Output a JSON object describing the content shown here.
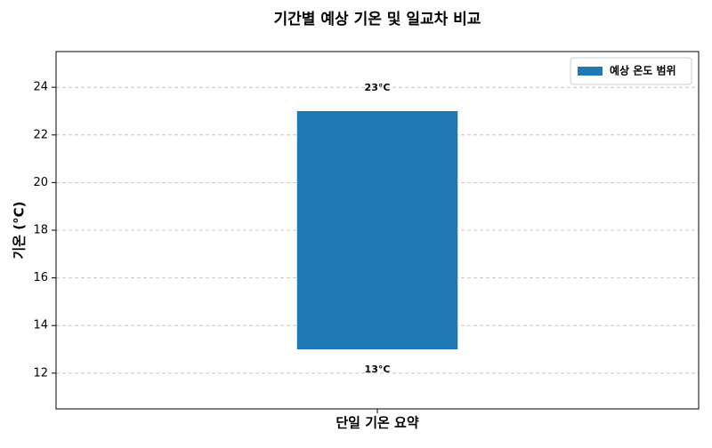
{
  "chart_data": {
    "type": "range_bar",
    "title": "기간별 예상 기온 및 일교차 비교",
    "ylabel": "기온 (°C)",
    "categories": [
      "단일 기온 요약"
    ],
    "series": [
      {
        "name": "예상 온도 범위",
        "color": "#1f77b4",
        "base": [
          13
        ],
        "values": [
          23
        ],
        "value_labels": [
          "23°C"
        ],
        "base_labels": [
          "13°C"
        ]
      }
    ],
    "ylim": [
      10.5,
      25.5
    ],
    "yticks": [
      12,
      14,
      16,
      18,
      20,
      22,
      24
    ],
    "grid": true,
    "legend": "upper right"
  }
}
